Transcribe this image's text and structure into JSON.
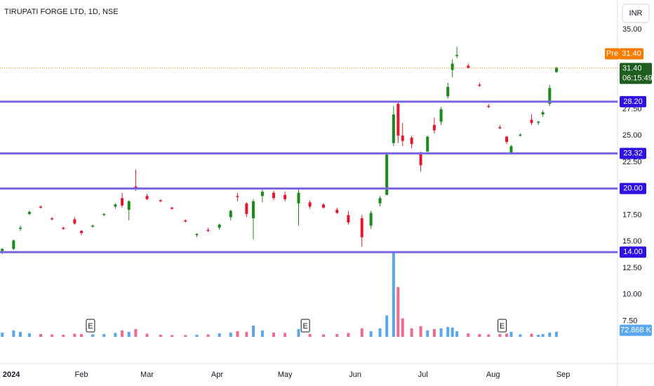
{
  "chart_data": {
    "type": "candlestick",
    "title": "TIRUPATI FORGE LTD, 1D, NSE",
    "currency_button": "INR",
    "xlim": [
      -4,
      269
    ],
    "ylim": [
      6,
      37.8
    ],
    "volume_lim": [
      0,
      1300
    ],
    "xticks": [
      {
        "value": 1,
        "label": "2024"
      },
      {
        "value": 32,
        "label": "Feb"
      },
      {
        "value": 61,
        "label": "Mar"
      },
      {
        "value": 92,
        "label": "Apr"
      },
      {
        "value": 122,
        "label": "May"
      },
      {
        "value": 153,
        "label": "Jun"
      },
      {
        "value": 183,
        "label": "Jul"
      },
      {
        "value": 214,
        "label": "Aug"
      },
      {
        "value": 245,
        "label": "Sep"
      }
    ],
    "yticks": [
      {
        "value": 35,
        "label": "35.00"
      },
      {
        "value": 27.5,
        "label": "27.50"
      },
      {
        "value": 25,
        "label": "25.00"
      },
      {
        "value": 22.5,
        "label": "22.50"
      },
      {
        "value": 17.5,
        "label": "17.50"
      },
      {
        "value": 15,
        "label": "15.00"
      },
      {
        "value": 12.5,
        "label": "12.50"
      },
      {
        "value": 10,
        "label": "10.00"
      },
      {
        "value": 7.5,
        "label": "7.50"
      }
    ],
    "up_color": "#1a8a1a",
    "down_color": "#e3162d",
    "volume_up_color": "#5aa7ee",
    "volume_down_color": "#ef6b8e",
    "x": [
      -3,
      2,
      5,
      9,
      14,
      19,
      24,
      29,
      32,
      37,
      42,
      47,
      50,
      53,
      56,
      61,
      67,
      72,
      78,
      83,
      88,
      93,
      98,
      101,
      105,
      108,
      112,
      117,
      122,
      128,
      133,
      139,
      145,
      150,
      156,
      160,
      164,
      167,
      170,
      172,
      174,
      178,
      182,
      185,
      188,
      191,
      194,
      196,
      198,
      203,
      208,
      212,
      217,
      220,
      222,
      226,
      231,
      234,
      236,
      239,
      242
    ],
    "open": [
      14.0,
      14.3,
      16.2,
      17.6,
      18.3,
      17.2,
      16.3,
      17.1,
      16.0,
      16.4,
      17.5,
      18.3,
      19.1,
      18.0,
      20.2,
      19.3,
      18.9,
      18.2,
      17.0,
      15.6,
      16.1,
      16.3,
      17.3,
      19.3,
      18.6,
      17.2,
      19.3,
      19.6,
      19.4,
      18.6,
      18.7,
      18.5,
      18.0,
      17.5,
      17.2,
      16.5,
      18.6,
      19.4,
      24.3,
      28.0,
      25.0,
      24.8,
      23.3,
      23.5,
      26.0,
      26.3,
      28.7,
      31.2,
      32.5,
      31.6,
      29.8,
      27.8,
      25.8,
      24.9,
      23.4,
      25.0,
      26.5,
      26.2,
      27.0,
      28.0,
      31.0
    ],
    "high": [
      14.4,
      15.2,
      16.5,
      17.9,
      18.4,
      17.3,
      16.4,
      17.3,
      16.1,
      16.6,
      17.7,
      18.6,
      19.6,
      18.9,
      21.8,
      19.5,
      19.0,
      18.3,
      17.1,
      15.8,
      16.3,
      16.7,
      18.0,
      19.6,
      18.7,
      19.0,
      19.9,
      19.8,
      19.7,
      20.0,
      18.9,
      18.6,
      18.2,
      17.9,
      17.5,
      17.9,
      19.3,
      23.3,
      27.8,
      28.2,
      26.2,
      25.0,
      23.5,
      25.0,
      26.7,
      27.7,
      30.0,
      32.2,
      33.4,
      31.8,
      30.0,
      28.0,
      26.0,
      25.0,
      24.1,
      25.2,
      27.0,
      26.4,
      27.4,
      29.8,
      31.5
    ],
    "low": [
      13.8,
      14.2,
      16.0,
      17.5,
      18.1,
      17.0,
      16.1,
      16.6,
      15.6,
      16.3,
      17.4,
      18.1,
      18.2,
      17.0,
      19.8,
      18.9,
      18.7,
      18.0,
      16.8,
      15.4,
      15.9,
      16.1,
      17.0,
      18.8,
      17.3,
      15.2,
      18.7,
      18.9,
      18.8,
      16.5,
      18.1,
      18.1,
      17.6,
      16.6,
      14.5,
      16.2,
      18.3,
      19.4,
      24.0,
      24.3,
      24.0,
      23.8,
      21.6,
      23.3,
      25.2,
      26.0,
      28.5,
      30.5,
      32.3,
      31.3,
      29.6,
      27.6,
      25.6,
      24.2,
      23.3,
      24.9,
      26.0,
      26.0,
      26.8,
      27.8,
      30.9
    ],
    "close": [
      14.3,
      15.1,
      16.3,
      17.8,
      18.2,
      17.1,
      16.2,
      16.7,
      15.8,
      16.5,
      17.6,
      18.5,
      18.4,
      18.8,
      20.0,
      19.0,
      18.8,
      18.1,
      16.9,
      15.7,
      16.0,
      16.6,
      17.9,
      19.2,
      17.6,
      18.8,
      19.7,
      19.1,
      19.0,
      19.6,
      18.3,
      18.2,
      17.7,
      16.8,
      15.4,
      17.7,
      19.1,
      23.2,
      27.0,
      25.0,
      24.5,
      24.2,
      22.2,
      24.9,
      25.5,
      27.5,
      29.6,
      31.8,
      32.6,
      31.4,
      29.7,
      27.7,
      25.7,
      24.4,
      24.0,
      25.1,
      26.2,
      26.3,
      27.2,
      29.5,
      31.4
    ],
    "volume": [
      60,
      90,
      70,
      50,
      40,
      35,
      30,
      45,
      40,
      35,
      40,
      55,
      90,
      70,
      110,
      45,
      30,
      25,
      25,
      30,
      35,
      50,
      60,
      80,
      70,
      160,
      90,
      60,
      55,
      110,
      40,
      35,
      40,
      55,
      120,
      80,
      120,
      300,
      1200,
      700,
      260,
      120,
      150,
      90,
      110,
      120,
      140,
      130,
      80,
      50,
      40,
      35,
      40,
      45,
      70,
      35,
      45,
      30,
      40,
      60,
      72.868
    ],
    "current_volume": {
      "value": 72.868,
      "label": "72.868 K"
    },
    "levels": [
      {
        "value": 28.2,
        "label": "28.20"
      },
      {
        "value": 23.32,
        "label": "23.32"
      },
      {
        "value": 20,
        "label": "20.00"
      },
      {
        "value": 14,
        "label": "14.00"
      }
    ],
    "level_color": "#7b63e6",
    "level_label_color": "#2d12e3",
    "last_price": {
      "value": 31.4,
      "label": "31.40"
    },
    "countdown": "06:15:49",
    "premarket": {
      "tag": "Pre",
      "value": 31.4,
      "label": "31.40"
    },
    "earnings": {
      "label": "E",
      "x": [
        36,
        131,
        218
      ]
    }
  }
}
